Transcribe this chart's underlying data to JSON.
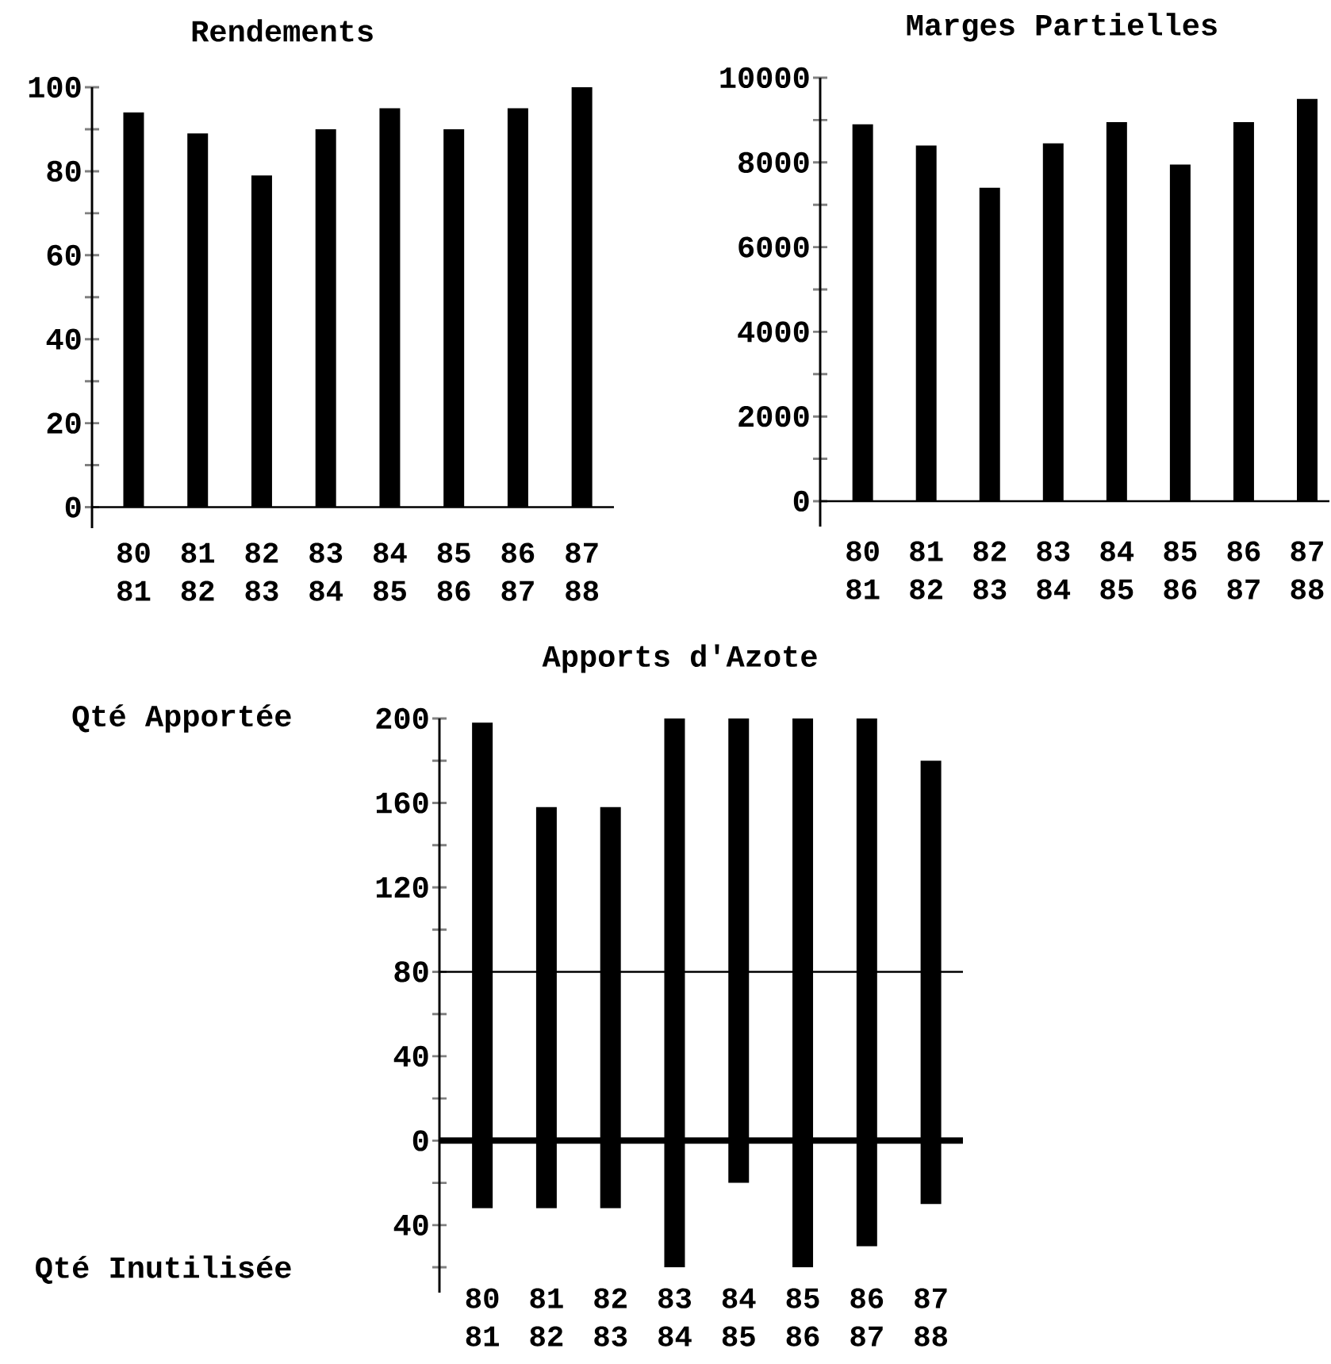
{
  "chart_data": [
    {
      "type": "bar",
      "title": "Rendements",
      "categories": [
        "80 81",
        "81 82",
        "82 83",
        "83 84",
        "84 85",
        "85 86",
        "86 87",
        "87 88"
      ],
      "values": [
        94,
        89,
        79,
        90,
        95,
        90,
        95,
        100
      ],
      "color": "#000000",
      "ylim": [
        -5,
        100
      ],
      "yticks": [
        0,
        {
          "value": 10,
          "label": null
        },
        20,
        {
          "value": 30,
          "label": null
        },
        40,
        {
          "value": 50,
          "label": null
        },
        60,
        {
          "value": 70,
          "label": null
        },
        80,
        {
          "value": 90,
          "label": null
        },
        100
      ]
    },
    {
      "type": "bar",
      "title": "Marges Partielles",
      "categories": [
        "80 81",
        "81 82",
        "82 83",
        "83 84",
        "84 85",
        "85 86",
        "86 87",
        "87 88"
      ],
      "values": [
        8900,
        8400,
        7400,
        8450,
        8950,
        7950,
        8950,
        9500
      ],
      "color": "#000000",
      "ylim": [
        -600,
        10000
      ],
      "yticks": [
        0,
        {
          "value": 1000,
          "label": null
        },
        2000,
        {
          "value": 3000,
          "label": null
        },
        4000,
        {
          "value": 5000,
          "label": null
        },
        6000,
        {
          "value": 7000,
          "label": null
        },
        8000,
        {
          "value": 9000,
          "label": null
        },
        10000
      ]
    },
    {
      "type": "bar",
      "title": "Apports d'Azote",
      "categories": [
        "80 81",
        "81 82",
        "82 83",
        "83 84",
        "84 85",
        "85 86",
        "86 87",
        "87 88"
      ],
      "series": [
        {
          "color": "#000000",
          "values": [
            198,
            158,
            158,
            200,
            200,
            200,
            200,
            180
          ]
        },
        {
          "color": "#000000",
          "values": [
            -32,
            -32,
            -32,
            -60,
            -20,
            -60,
            -50,
            -30
          ]
        }
      ],
      "stacked": true,
      "annotations": [
        "Qté Apportée",
        "Qté Inutilisée"
      ],
      "ylim": [
        -72,
        200
      ],
      "yticks": [
        {
          "value": -60,
          "label": null
        },
        {
          "value": -40,
          "label": "40"
        },
        {
          "value": -20,
          "label": null
        },
        0,
        {
          "value": 20,
          "label": null
        },
        40,
        {
          "value": 60,
          "label": null
        },
        80,
        {
          "value": 100,
          "label": null
        },
        120,
        {
          "value": 140,
          "label": null
        },
        160,
        {
          "value": 180,
          "label": null
        },
        200
      ],
      "ref_lines": [
        {
          "axis": "y",
          "value": 80
        }
      ]
    }
  ]
}
